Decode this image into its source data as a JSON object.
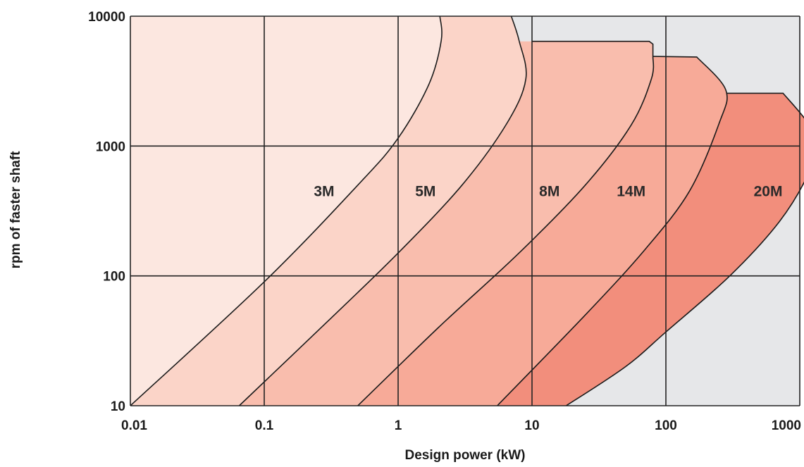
{
  "chart_data": {
    "type": "area",
    "title": "",
    "xlabel": "Design power (kW)",
    "ylabel": "rpm of faster shaft",
    "xscale": "log",
    "yscale": "log",
    "xlim": [
      0.01,
      1000
    ],
    "ylim": [
      10,
      10000
    ],
    "x_ticks": [
      {
        "value": 0.01,
        "label": "0.01"
      },
      {
        "value": 0.1,
        "label": "0.1"
      },
      {
        "value": 1,
        "label": "1"
      },
      {
        "value": 10,
        "label": "10"
      },
      {
        "value": 100,
        "label": "100"
      },
      {
        "value": 1000,
        "label": "1000"
      }
    ],
    "y_ticks": [
      {
        "value": 10,
        "label": "10"
      },
      {
        "value": 100,
        "label": "100"
      },
      {
        "value": 1000,
        "label": "1000"
      },
      {
        "value": 10000,
        "label": "10000"
      }
    ],
    "grid": true,
    "background_color": "#e6e7e9",
    "series": [
      {
        "name": "3M",
        "color": "#fce7e0",
        "label_at": [
          0.28,
          450
        ],
        "upper_boundary": [
          [
            0.01,
            10
          ],
          [
            0.1,
            90
          ],
          [
            0.5,
            500
          ],
          [
            1,
            1150
          ],
          [
            1.7,
            3000
          ],
          [
            2.1,
            6500
          ],
          [
            2.05,
            10000
          ]
        ]
      },
      {
        "name": "5M",
        "color": "#fbd4c8",
        "label_at": [
          1.6,
          450
        ],
        "upper_boundary": [
          [
            0.065,
            10
          ],
          [
            0.3,
            45
          ],
          [
            1,
            150
          ],
          [
            3,
            500
          ],
          [
            6.5,
            1500
          ],
          [
            9,
            3300
          ],
          [
            8,
            6500
          ],
          [
            7,
            10000
          ]
        ]
      },
      {
        "name": "8M",
        "color": "#f9bdad",
        "label_at": [
          13.5,
          450
        ],
        "top_cap": [
          [
            10,
            6400
          ],
          [
            75,
            6400
          ],
          [
            80,
            6100
          ]
        ],
        "upper_boundary": [
          [
            0.5,
            10
          ],
          [
            2,
            40
          ],
          [
            8,
            150
          ],
          [
            25,
            500
          ],
          [
            55,
            1450
          ],
          [
            78,
            3300
          ],
          [
            80,
            4900
          ]
        ]
      },
      {
        "name": "14M",
        "color": "#f7aa98",
        "label_at": [
          55,
          450
        ],
        "top_cap": [
          [
            80,
            4900
          ],
          [
            170,
            4850
          ]
        ],
        "upper_boundary": [
          [
            5.5,
            10
          ],
          [
            25,
            50
          ],
          [
            70,
            160
          ],
          [
            150,
            450
          ],
          [
            250,
            1500
          ],
          [
            280,
            2700
          ],
          [
            170,
            4850
          ]
        ]
      },
      {
        "name": "20M",
        "color": "#f28e7c",
        "label_at": [
          580,
          450
        ],
        "top_cap": [
          [
            280,
            2550
          ],
          [
            750,
            2550
          ]
        ],
        "upper_boundary": [
          [
            18,
            10
          ],
          [
            50,
            20
          ],
          [
            100,
            37
          ],
          [
            300,
            100
          ],
          [
            700,
            260
          ],
          [
            1150,
            600
          ],
          [
            1300,
            1000
          ],
          [
            1150,
            1500
          ],
          [
            750,
            2550
          ]
        ]
      }
    ]
  }
}
